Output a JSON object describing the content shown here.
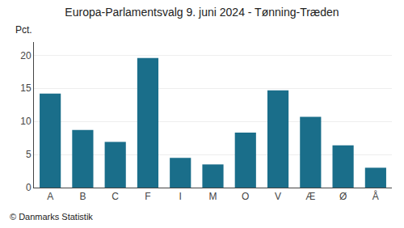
{
  "chart_data": {
    "type": "bar",
    "title": "Europa-Parlamentsvalg 9. juni 2024 - Tønning-Træden",
    "ylabel": "Pct.",
    "categories": [
      "A",
      "B",
      "C",
      "F",
      "I",
      "M",
      "O",
      "V",
      "Æ",
      "Ø",
      "Å"
    ],
    "values": [
      14.2,
      8.7,
      6.9,
      19.6,
      4.5,
      3.5,
      8.3,
      14.7,
      10.7,
      6.4,
      3.0
    ],
    "color": "#1a6e8a",
    "ylim": [
      0,
      22
    ],
    "yticks": [
      0,
      5,
      10,
      15,
      20
    ],
    "grid": true,
    "annotations": [
      "© Danmarks Statistik"
    ]
  }
}
